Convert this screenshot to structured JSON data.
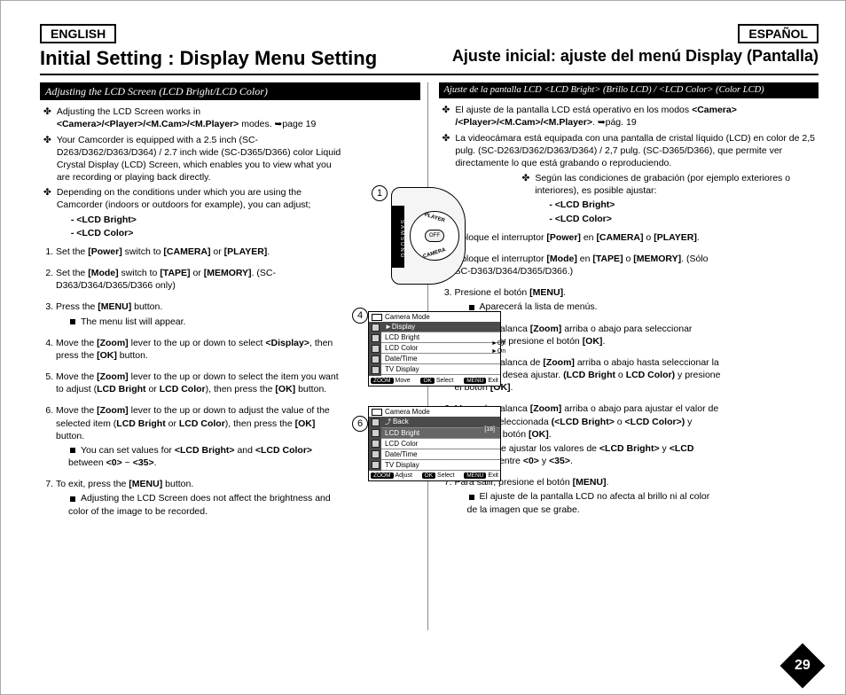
{
  "page_number": "29",
  "lang": {
    "left": "ENGLISH",
    "right": "ESPAÑOL"
  },
  "title": {
    "left": "Initial Setting : Display Menu Setting",
    "right": "Ajuste inicial: ajuste del menú Display (Pantalla)"
  },
  "left": {
    "subhead": "Adjusting the LCD Screen (LCD Bright/LCD Color)",
    "intro": [
      {
        "pre": "Adjusting the LCD Screen works in ",
        "bold": "<Camera>/<Player>/<M.Cam>/<M.Player>",
        "post": " modes. ➥page 19"
      },
      {
        "text": "Your Camcorder is equipped with a 2.5 inch (SC-D263/D362/D363/D364) / 2.7 inch wide (SC-D365/D366) color Liquid Crystal Display (LCD) Screen, which enables you to view what you are recording or playing back directly."
      },
      {
        "text": "Depending on the conditions under which you are using the Camcorder (indoors or outdoors for example), you can adjust;",
        "sub": [
          "- <LCD Bright>",
          "- <LCD Color>"
        ]
      }
    ],
    "steps": [
      {
        "html": "Set the <b>[Power]</b> switch to <b>[CAMERA]</b> or <b>[PLAYER]</b>."
      },
      {
        "html": "Set the <b>[Mode]</b> switch to <b>[TAPE]</b> or <b>[MEMORY]</b>. (SC-D363/D364/D365/D366 only)"
      },
      {
        "html": "Press the <b>[MENU]</b> button.",
        "note": "The menu list will appear."
      },
      {
        "html": "Move the <b>[Zoom]</b> lever to the up or down to select <b>&lt;Display&gt;</b>, then press the <b>[OK]</b> button."
      },
      {
        "html": "Move the <b>[Zoom]</b> lever to the up or down to select the item you want to adjust (<b>LCD Bright</b> or <b>LCD Color</b>), then press the <b>[OK]</b> button."
      },
      {
        "html": "Move the <b>[Zoom]</b> lever to the up or down to adjust the value of the selected item (<b>LCD Bright</b> or <b>LCD Color</b>), then press the <b>[OK]</b> button.",
        "note": "You can set values for <b>&lt;LCD Bright&gt;</b> and <b>&lt;LCD Color&gt;</b> between <b>&lt;0&gt;</b> ~ <b>&lt;35&gt;</b>."
      },
      {
        "html": "To exit, press the <b>[MENU]</b> button.",
        "note": "Adjusting the LCD Screen does not affect the brightness and color of the image to be recorded."
      }
    ]
  },
  "right": {
    "subhead": "Ajuste de la pantalla LCD <LCD Bright> (Brillo LCD) / <LCD Color> (Color LCD)",
    "intro": [
      {
        "html": "El ajuste de la pantalla LCD está operativo en los modos <b>&lt;Camera&gt; /&lt;Player&gt;/&lt;M.Cam&gt;/&lt;M.Player&gt;</b>. ➥pág. 19"
      },
      {
        "html": "La videocámara está equipada con una pantalla de cristal líquido (LCD) en color de 2,5 pulg. (SC-D263/D362/D363/D364) / 2,7 pulg. (SC-D365/D366), que permite ver directamente lo que está grabando o reproduciendo."
      },
      {
        "html": "Según las condiciones de grabación (por ejemplo exteriores o interiores), es posible ajustar:",
        "sub": [
          "- <LCD Bright>",
          "- <LCD Color>"
        ],
        "indent": true
      }
    ],
    "steps": [
      {
        "html": "Coloque el interruptor <b>[Power]</b> en <b>[CAMERA]</b> o <b>[PLAYER]</b>."
      },
      {
        "html": "Coloque el interruptor <b>[Mode]</b> en <b>[TAPE]</b> o <b>[MEMORY]</b>. (Sólo SC-D363/D364/D365/D366.)"
      },
      {
        "html": "Presione el botón <b>[MENU]</b>.",
        "note": "Aparecerá la lista de menús."
      },
      {
        "html": "Mueva la palanca <b>[Zoom]</b> arriba o abajo para seleccionar <b>&lt;Display&gt;</b> y presione el botón <b>[OK]</b>."
      },
      {
        "html": "Mueva la palanca de <b>[Zoom]</b> arriba o abajo hasta seleccionar la opción que desea ajustar. <b>(LCD Bright</b> o <b>LCD Color)</b> y presione el botón <b>[OK]</b>."
      },
      {
        "html": "Mueva la palanca <b>[Zoom]</b> arriba o abajo para ajustar el valor de la opción seleccionada <b>(&lt;LCD Bright&gt;</b> o <b>&lt;LCD Color&gt;)</b> y presione el botón <b>[OK]</b>.",
        "note": "Puede ajustar los valores de <b>&lt;LCD Bright&gt;</b> y <b>&lt;LCD Color&gt;</b> entre <b>&lt;0&gt;</b> y <b>&lt;35&gt;</b>."
      },
      {
        "html": "Para salir, presione el botón <b>[MENU]</b>.",
        "note": "El ajuste de la pantalla LCD no afecta al brillo ni al color de la imagen que se grabe."
      }
    ]
  },
  "figures": {
    "circ1": "1",
    "circ4": "4",
    "circ6": "6",
    "dial": {
      "brand": "SAMSUNG",
      "off": "OFF",
      "player": "PLAYER",
      "camera": "CAMERA"
    },
    "menu1": {
      "header": "Camera Mode",
      "top": "►Display",
      "rows": [
        "LCD Bright",
        "LCD Color",
        "Date/Time",
        "TV Display"
      ],
      "opts": [
        "►Off",
        "►On"
      ],
      "footer": {
        "zoom": "ZOOM",
        "move": "Move",
        "ok": "OK",
        "select": "Select",
        "menu": "MENU",
        "exit": "Exit"
      }
    },
    "menu2": {
      "header": "Camera Mode",
      "top": "Back",
      "rows": [
        "LCD Bright",
        "LCD Color",
        "Date/Time",
        "TV Display"
      ],
      "badge": "[18]",
      "footer": {
        "zoom": "ZOOM",
        "adjust": "Adjust",
        "ok": "OK",
        "select": "Select",
        "menu": "MENU",
        "exit": "Exit"
      }
    }
  },
  "colors": {
    "black": "#000000",
    "white": "#ffffff",
    "grey": "#4a4a4a"
  }
}
